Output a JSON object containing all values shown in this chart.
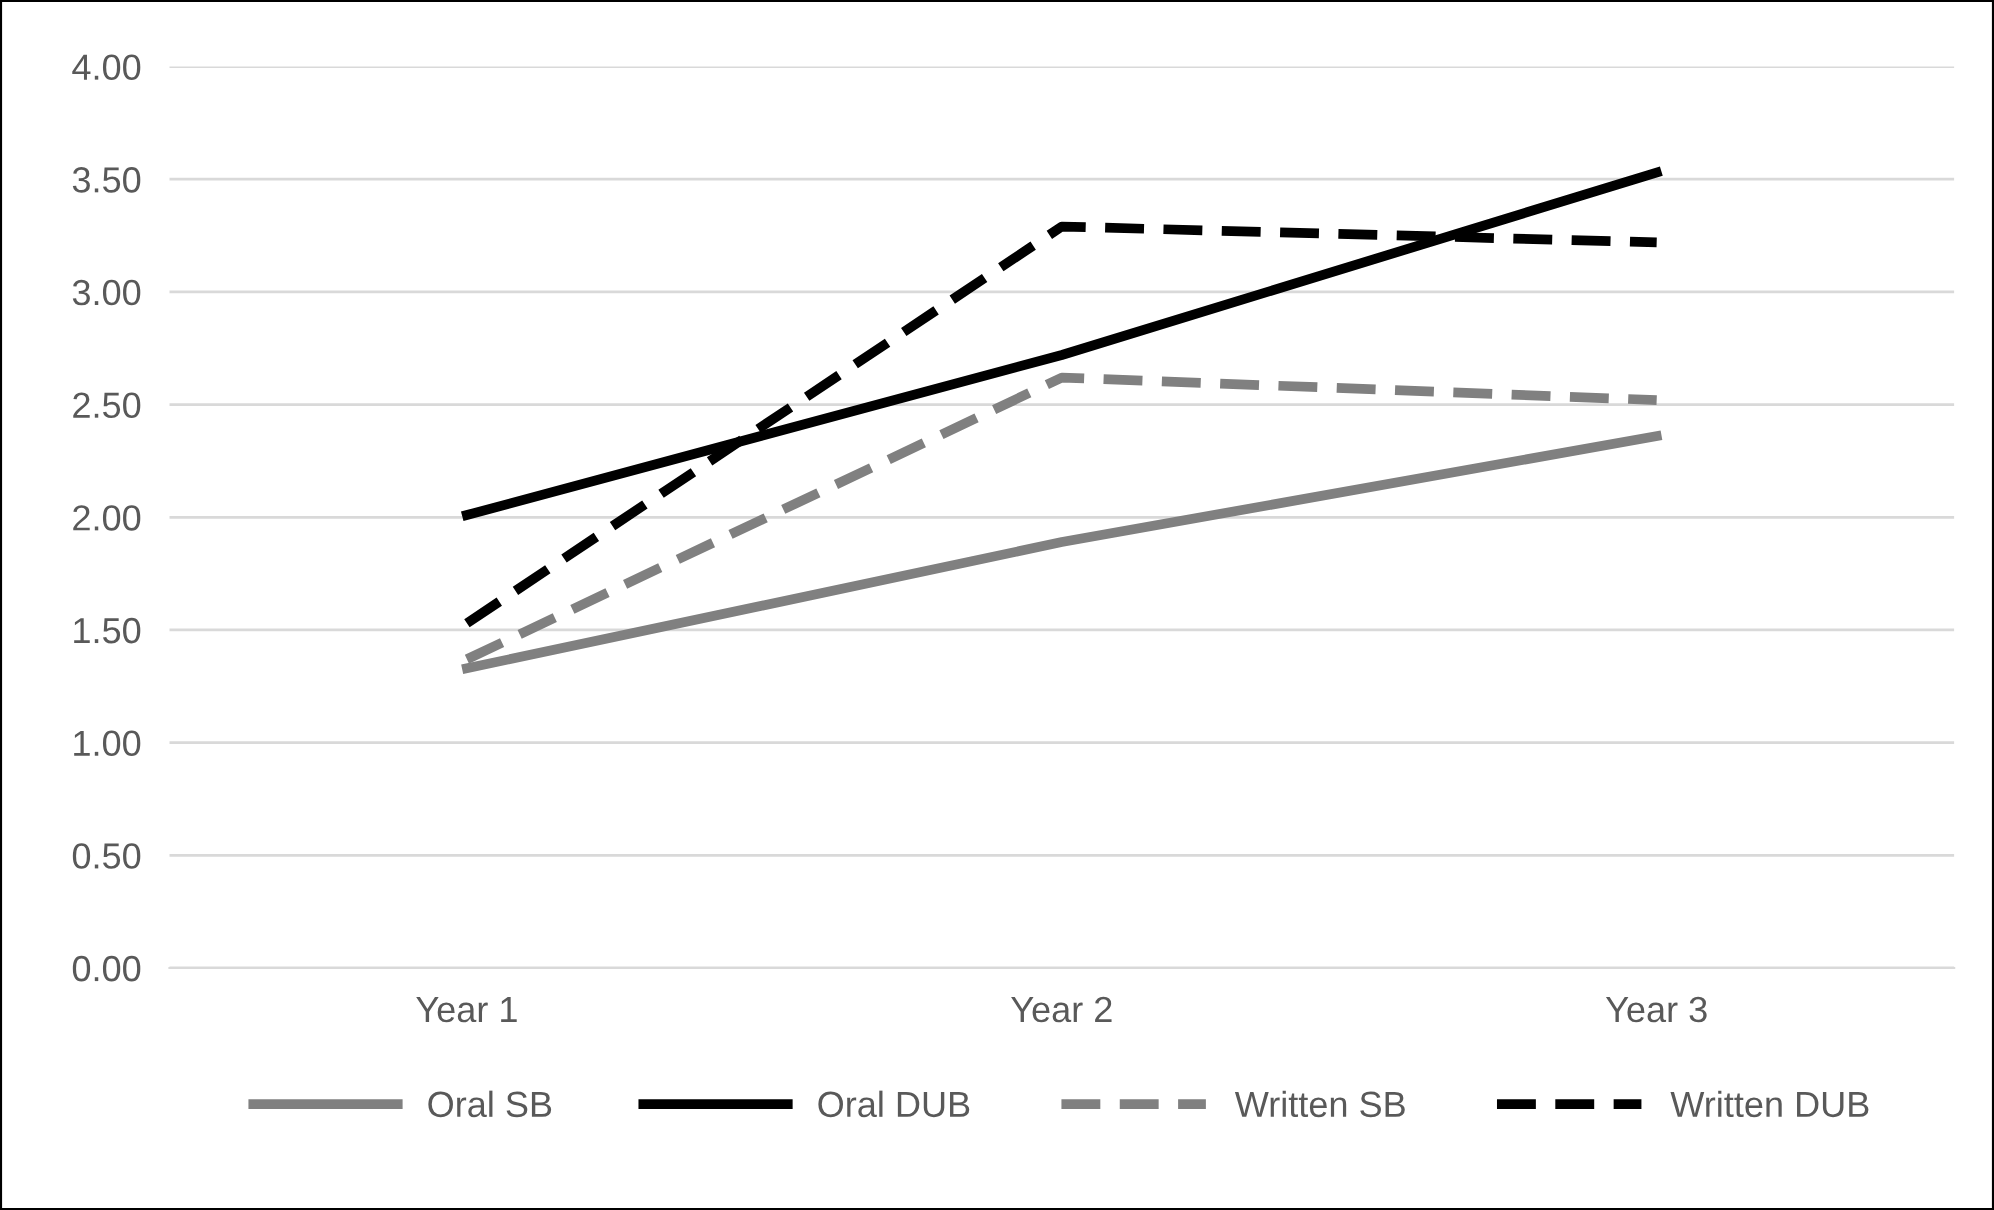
{
  "chart_data": {
    "type": "line",
    "categories": [
      "Year 1",
      "Year 2",
      "Year 3"
    ],
    "series": [
      {
        "name": "Oral SB",
        "color": "#808080",
        "line_style": "solid",
        "values": [
          1.33,
          1.89,
          2.36
        ]
      },
      {
        "name": "Oral DUB",
        "color": "#000000",
        "line_style": "solid",
        "values": [
          2.01,
          2.72,
          3.53
        ]
      },
      {
        "name": "Written SB",
        "color": "#808080",
        "line_style": "dashed",
        "values": [
          1.37,
          2.62,
          2.52
        ]
      },
      {
        "name": "Written DUB",
        "color": "#000000",
        "line_style": "dashed",
        "values": [
          1.53,
          3.29,
          3.22
        ]
      }
    ],
    "ylim": [
      0,
      4
    ],
    "yticks": [
      {
        "value": 0,
        "label": "0.00"
      },
      {
        "value": 0.5,
        "label": "0.50"
      },
      {
        "value": 1,
        "label": "1.00"
      },
      {
        "value": 1.5,
        "label": "1.50"
      },
      {
        "value": 2,
        "label": "2.00"
      },
      {
        "value": 2.5,
        "label": "2.50"
      },
      {
        "value": 3,
        "label": "3.00"
      },
      {
        "value": 3.5,
        "label": "3.50"
      },
      {
        "value": 4,
        "label": "4.00"
      }
    ],
    "grid": "y",
    "legend": "bottom",
    "marker": "none"
  }
}
